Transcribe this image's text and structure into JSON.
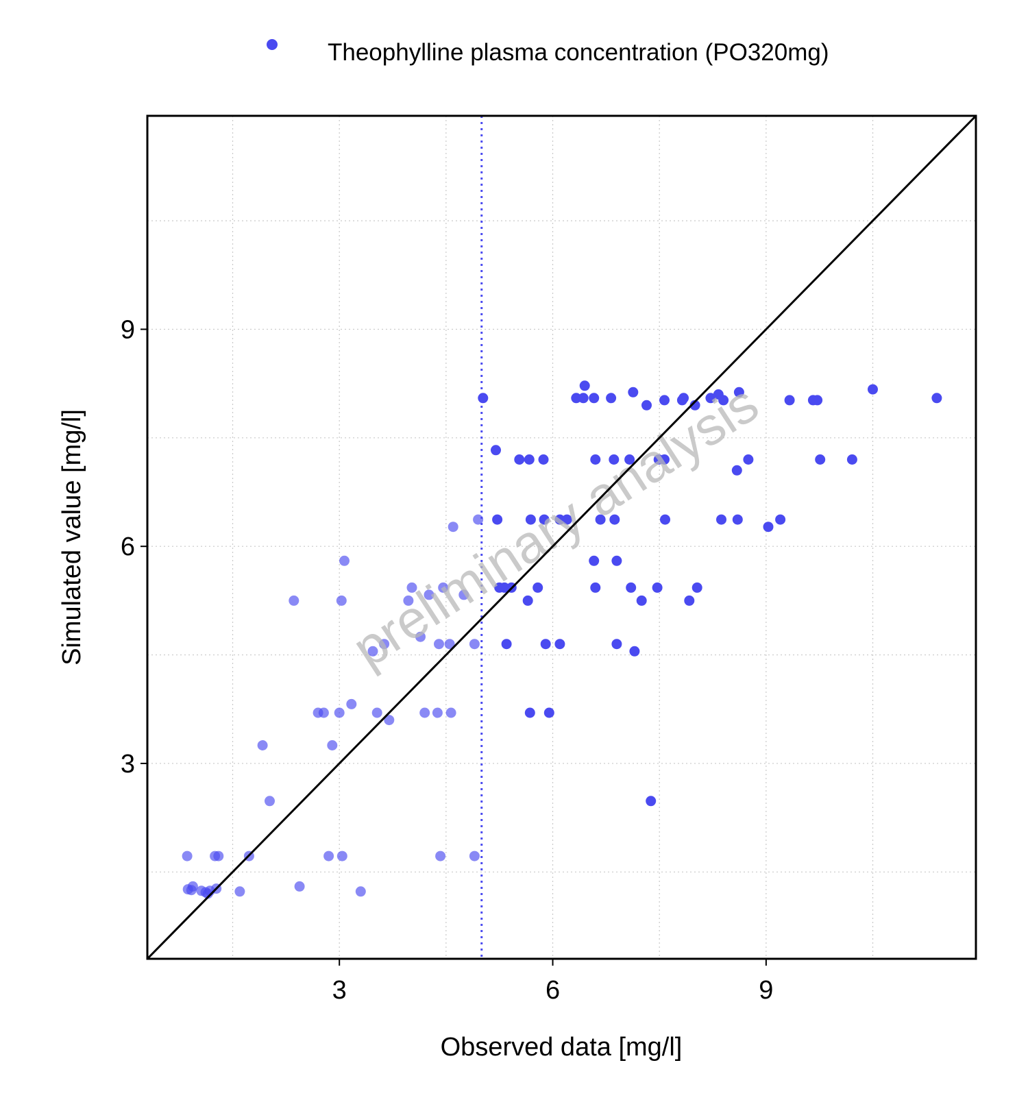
{
  "chart_data": {
    "type": "scatter",
    "xlabel": "Observed data [mg/l]",
    "ylabel": "Simulated value [mg/l]",
    "xlim": [
      0.3,
      11.95
    ],
    "ylim": [
      0.3,
      11.95
    ],
    "x_ticks": [
      3,
      6,
      9
    ],
    "y_ticks": [
      3,
      6,
      9
    ],
    "x_tick_labels": [
      "3",
      "6",
      "9"
    ],
    "y_tick_labels": [
      "3",
      "6",
      "9"
    ],
    "minor_gridlines": [
      1.5,
      4.5,
      7.5,
      10.5
    ],
    "grid": true,
    "legend_position": "top",
    "watermark": "preliminary analysis",
    "identity_line": true,
    "vertical_reference_x": 5.0,
    "point_color": "#4a4af0",
    "reference_line_color": "#4a4af0",
    "series": [
      {
        "name": "Theophylline plasma concentration (PO320mg)",
        "points": [
          [
            0.86,
            1.72
          ],
          [
            0.87,
            1.26
          ],
          [
            0.92,
            1.25
          ],
          [
            0.94,
            1.3
          ],
          [
            1.06,
            1.24
          ],
          [
            1.12,
            1.22
          ],
          [
            1.15,
            1.2
          ],
          [
            1.18,
            1.24
          ],
          [
            1.25,
            1.72
          ],
          [
            1.27,
            1.27
          ],
          [
            1.3,
            1.72
          ],
          [
            1.6,
            1.23
          ],
          [
            1.73,
            1.72
          ],
          [
            1.92,
            3.25
          ],
          [
            2.02,
            2.48
          ],
          [
            2.36,
            5.25
          ],
          [
            2.44,
            1.3
          ],
          [
            2.7,
            3.7
          ],
          [
            2.78,
            3.7
          ],
          [
            2.85,
            1.72
          ],
          [
            2.9,
            3.25
          ],
          [
            3.0,
            3.7
          ],
          [
            3.03,
            5.25
          ],
          [
            3.04,
            1.72
          ],
          [
            3.07,
            5.8
          ],
          [
            3.17,
            3.82
          ],
          [
            3.3,
            1.23
          ],
          [
            3.47,
            4.55
          ],
          [
            3.53,
            3.7
          ],
          [
            3.63,
            4.65
          ],
          [
            3.7,
            3.6
          ],
          [
            3.97,
            5.25
          ],
          [
            4.02,
            5.43
          ],
          [
            4.14,
            4.75
          ],
          [
            4.2,
            3.7
          ],
          [
            4.26,
            5.33
          ],
          [
            4.38,
            3.7
          ],
          [
            4.4,
            4.65
          ],
          [
            4.42,
            1.72
          ],
          [
            4.46,
            5.43
          ],
          [
            4.55,
            4.65
          ],
          [
            4.57,
            3.7
          ],
          [
            4.6,
            6.27
          ],
          [
            4.75,
            5.33
          ],
          [
            4.9,
            4.65
          ],
          [
            4.9,
            1.72
          ],
          [
            4.95,
            6.37
          ],
          [
            5.02,
            8.05
          ],
          [
            5.2,
            7.33
          ],
          [
            5.22,
            6.37
          ],
          [
            5.25,
            5.43
          ],
          [
            5.32,
            5.43
          ],
          [
            5.35,
            4.65
          ],
          [
            5.42,
            5.43
          ],
          [
            5.53,
            7.2
          ],
          [
            5.65,
            5.25
          ],
          [
            5.67,
            7.2
          ],
          [
            5.68,
            3.7
          ],
          [
            5.69,
            6.37
          ],
          [
            5.79,
            5.43
          ],
          [
            5.87,
            7.2
          ],
          [
            5.88,
            6.37
          ],
          [
            5.9,
            4.65
          ],
          [
            5.95,
            3.7
          ],
          [
            6.1,
            4.65
          ],
          [
            6.1,
            6.37
          ],
          [
            6.2,
            6.37
          ],
          [
            6.33,
            8.05
          ],
          [
            6.43,
            8.05
          ],
          [
            6.45,
            8.22
          ],
          [
            6.58,
            8.05
          ],
          [
            6.58,
            5.8
          ],
          [
            6.6,
            5.43
          ],
          [
            6.6,
            7.2
          ],
          [
            6.67,
            6.37
          ],
          [
            6.82,
            8.05
          ],
          [
            6.86,
            7.2
          ],
          [
            6.87,
            6.37
          ],
          [
            6.9,
            5.8
          ],
          [
            6.9,
            4.65
          ],
          [
            7.08,
            7.2
          ],
          [
            7.1,
            5.43
          ],
          [
            7.13,
            8.13
          ],
          [
            7.15,
            4.55
          ],
          [
            7.25,
            5.25
          ],
          [
            7.32,
            7.95
          ],
          [
            7.38,
            2.48
          ],
          [
            7.47,
            5.43
          ],
          [
            7.49,
            7.2
          ],
          [
            7.57,
            7.2
          ],
          [
            7.57,
            8.02
          ],
          [
            7.58,
            6.37
          ],
          [
            7.82,
            8.02
          ],
          [
            7.84,
            8.05
          ],
          [
            7.92,
            5.25
          ],
          [
            8.0,
            7.95
          ],
          [
            8.03,
            5.43
          ],
          [
            8.22,
            8.05
          ],
          [
            8.33,
            8.1
          ],
          [
            8.37,
            6.37
          ],
          [
            8.4,
            8.02
          ],
          [
            8.59,
            7.05
          ],
          [
            8.6,
            6.37
          ],
          [
            8.62,
            8.13
          ],
          [
            8.75,
            7.2
          ],
          [
            9.03,
            6.27
          ],
          [
            9.2,
            6.37
          ],
          [
            9.33,
            8.02
          ],
          [
            9.66,
            8.02
          ],
          [
            9.72,
            8.02
          ],
          [
            9.76,
            7.2
          ],
          [
            10.21,
            7.2
          ],
          [
            10.5,
            8.17
          ],
          [
            11.4,
            8.05
          ]
        ]
      }
    ]
  }
}
